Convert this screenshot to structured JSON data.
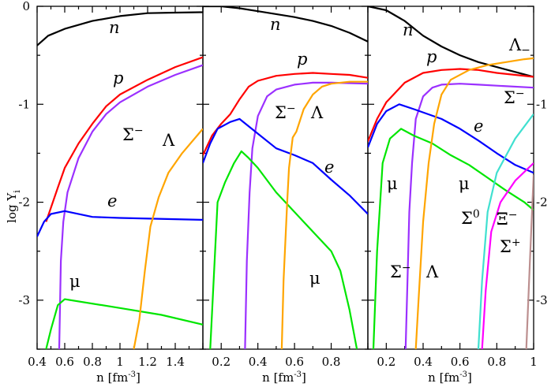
{
  "chart_data": [
    {
      "type": "line",
      "xlabel": "n [fm^-3]",
      "ylabel": "log Y_i",
      "xlim": [
        0.4,
        1.6
      ],
      "ylim": [
        -3.5,
        0
      ],
      "xticks": [
        "0.4",
        "0.6",
        "0.8",
        "1",
        "1.2",
        "1.4"
      ],
      "yticks": [
        "0",
        "-1",
        "-2",
        "-3"
      ],
      "series": [
        {
          "name": "n",
          "color": "#000000",
          "points": [
            [
              0.4,
              -0.4
            ],
            [
              0.48,
              -0.3
            ],
            [
              0.6,
              -0.23
            ],
            [
              0.8,
              -0.15
            ],
            [
              1.0,
              -0.1
            ],
            [
              1.2,
              -0.07
            ],
            [
              1.36,
              -0.065
            ],
            [
              1.6,
              -0.06
            ]
          ]
        },
        {
          "name": "p",
          "color": "#ff0000",
          "points": [
            [
              0.465,
              -2.2
            ],
            [
              0.55,
              -1.85
            ],
            [
              0.6,
              -1.65
            ],
            [
              0.7,
              -1.4
            ],
            [
              0.8,
              -1.2
            ],
            [
              0.9,
              -1.02
            ],
            [
              1.0,
              -0.9
            ],
            [
              1.2,
              -0.75
            ],
            [
              1.4,
              -0.62
            ],
            [
              1.6,
              -0.52
            ]
          ]
        },
        {
          "name": "Σ⁻",
          "color": "#9b30ff",
          "points": [
            [
              0.56,
              -3.5
            ],
            [
              0.572,
              -2.6
            ],
            [
              0.59,
              -2.2
            ],
            [
              0.62,
              -1.9
            ],
            [
              0.7,
              -1.55
            ],
            [
              0.8,
              -1.28
            ],
            [
              0.9,
              -1.1
            ],
            [
              1.0,
              -0.98
            ],
            [
              1.2,
              -0.82
            ],
            [
              1.4,
              -0.7
            ],
            [
              1.6,
              -0.6
            ]
          ]
        },
        {
          "name": "e",
          "color": "#0000ff",
          "points": [
            [
              0.4,
              -2.35
            ],
            [
              0.45,
              -2.2
            ],
            [
              0.5,
              -2.12
            ],
            [
              0.6,
              -2.09
            ],
            [
              0.8,
              -2.15
            ],
            [
              1.0,
              -2.16
            ],
            [
              1.6,
              -2.18
            ]
          ]
        },
        {
          "name": "μ",
          "color": "#00e600",
          "points": [
            [
              0.465,
              -3.5
            ],
            [
              0.5,
              -3.3
            ],
            [
              0.55,
              -3.05
            ],
            [
              0.6,
              -2.99
            ],
            [
              1.0,
              -3.08
            ],
            [
              1.3,
              -3.15
            ],
            [
              1.6,
              -3.25
            ]
          ]
        },
        {
          "name": "Λ",
          "color": "#ffa500",
          "points": [
            [
              1.1,
              -3.5
            ],
            [
              1.14,
              -3.2
            ],
            [
              1.18,
              -2.7
            ],
            [
              1.22,
              -2.25
            ],
            [
              1.28,
              -1.95
            ],
            [
              1.35,
              -1.7
            ],
            [
              1.45,
              -1.5
            ],
            [
              1.6,
              -1.25
            ]
          ]
        }
      ],
      "annotations": [
        "n",
        "p",
        "Σ⁻",
        "Λ",
        "e",
        "μ"
      ]
    },
    {
      "type": "line",
      "xlabel": "n [fm^-3]",
      "xlim": [
        0.1,
        1.0
      ],
      "ylim": [
        -3.5,
        0
      ],
      "xticks": [
        "0.2",
        "0.4",
        "0.6",
        "0.8"
      ],
      "series": [
        {
          "name": "n",
          "color": "#000000",
          "points": [
            [
              0.1,
              -0.0
            ],
            [
              0.2,
              -0.0
            ],
            [
              0.3,
              -0.02
            ],
            [
              0.4,
              -0.05
            ],
            [
              0.5,
              -0.08
            ],
            [
              0.6,
              -0.11
            ],
            [
              0.7,
              -0.15
            ],
            [
              0.8,
              -0.2
            ],
            [
              0.9,
              -0.27
            ],
            [
              1.0,
              -0.36
            ]
          ]
        },
        {
          "name": "p",
          "color": "#ff0000",
          "points": [
            [
              0.1,
              -1.52
            ],
            [
              0.15,
              -1.32
            ],
            [
              0.2,
              -1.2
            ],
            [
              0.25,
              -1.1
            ],
            [
              0.3,
              -0.95
            ],
            [
              0.35,
              -0.82
            ],
            [
              0.4,
              -0.76
            ],
            [
              0.5,
              -0.71
            ],
            [
              0.6,
              -0.69
            ],
            [
              0.7,
              -0.68
            ],
            [
              0.8,
              -0.69
            ],
            [
              0.9,
              -0.7
            ],
            [
              1.0,
              -0.73
            ]
          ]
        },
        {
          "name": "Σ⁻",
          "color": "#9b30ff",
          "points": [
            [
              0.33,
              -3.5
            ],
            [
              0.34,
              -2.6
            ],
            [
              0.355,
              -1.9
            ],
            [
              0.37,
              -1.45
            ],
            [
              0.4,
              -1.12
            ],
            [
              0.45,
              -0.92
            ],
            [
              0.5,
              -0.85
            ],
            [
              0.6,
              -0.8
            ],
            [
              0.7,
              -0.78
            ],
            [
              0.8,
              -0.78
            ],
            [
              1.0,
              -0.79
            ]
          ]
        },
        {
          "name": "e",
          "color": "#0000ff",
          "points": [
            [
              0.1,
              -1.6
            ],
            [
              0.14,
              -1.4
            ],
            [
              0.18,
              -1.25
            ],
            [
              0.25,
              -1.18
            ],
            [
              0.3,
              -1.15
            ],
            [
              0.4,
              -1.3
            ],
            [
              0.5,
              -1.45
            ],
            [
              0.6,
              -1.52
            ],
            [
              0.7,
              -1.6
            ],
            [
              0.8,
              -1.77
            ],
            [
              0.9,
              -1.93
            ],
            [
              1.0,
              -2.12
            ]
          ]
        },
        {
          "name": "μ",
          "color": "#00e600",
          "points": [
            [
              0.14,
              -3.5
            ],
            [
              0.18,
              -2.0
            ],
            [
              0.22,
              -1.8
            ],
            [
              0.27,
              -1.6
            ],
            [
              0.31,
              -1.48
            ],
            [
              0.35,
              -1.55
            ],
            [
              0.4,
              -1.65
            ],
            [
              0.5,
              -1.9
            ],
            [
              0.6,
              -2.1
            ],
            [
              0.7,
              -2.3
            ],
            [
              0.8,
              -2.5
            ],
            [
              0.85,
              -2.7
            ],
            [
              0.9,
              -3.1
            ],
            [
              0.94,
              -3.5
            ]
          ]
        },
        {
          "name": "Λ",
          "color": "#ffa500",
          "points": [
            [
              0.53,
              -3.5
            ],
            [
              0.54,
              -2.8
            ],
            [
              0.56,
              -2.0
            ],
            [
              0.57,
              -1.65
            ],
            [
              0.59,
              -1.34
            ],
            [
              0.61,
              -1.28
            ],
            [
              0.65,
              -1.05
            ],
            [
              0.7,
              -0.9
            ],
            [
              0.75,
              -0.82
            ],
            [
              0.8,
              -0.79
            ],
            [
              0.9,
              -0.77
            ],
            [
              1.0,
              -0.77
            ]
          ]
        }
      ],
      "annotations": [
        "n",
        "p",
        "Σ⁻",
        "Λ",
        "e",
        "μ"
      ]
    },
    {
      "type": "line",
      "xlabel": "n [fm^-3]",
      "xlim": [
        0.1,
        1.0
      ],
      "ylim": [
        -3.5,
        0
      ],
      "xticks": [
        "0.2",
        "0.4",
        "0.6",
        "0.8",
        "1"
      ],
      "yticks": [
        "-1",
        "-2",
        "-3"
      ],
      "series": [
        {
          "name": "n",
          "color": "#000000",
          "points": [
            [
              0.1,
              0.0
            ],
            [
              0.2,
              -0.04
            ],
            [
              0.3,
              -0.15
            ],
            [
              0.4,
              -0.3
            ],
            [
              0.5,
              -0.41
            ],
            [
              0.6,
              -0.5
            ],
            [
              0.7,
              -0.57
            ],
            [
              0.8,
              -0.62
            ],
            [
              0.9,
              -0.67
            ],
            [
              1.0,
              -0.72
            ]
          ]
        },
        {
          "name": "p",
          "color": "#ff0000",
          "points": [
            [
              0.1,
              -1.38
            ],
            [
              0.15,
              -1.15
            ],
            [
              0.2,
              -0.98
            ],
            [
              0.3,
              -0.78
            ],
            [
              0.4,
              -0.68
            ],
            [
              0.5,
              -0.65
            ],
            [
              0.6,
              -0.64
            ],
            [
              0.7,
              -0.65
            ],
            [
              0.8,
              -0.68
            ],
            [
              0.9,
              -0.7
            ],
            [
              1.0,
              -0.72
            ]
          ]
        },
        {
          "name": "Σ⁻",
          "color": "#9b30ff",
          "points": [
            [
              0.305,
              -3.5
            ],
            [
              0.315,
              -2.8
            ],
            [
              0.325,
              -2.1
            ],
            [
              0.34,
              -1.6
            ],
            [
              0.36,
              -1.15
            ],
            [
              0.4,
              -0.92
            ],
            [
              0.45,
              -0.83
            ],
            [
              0.5,
              -0.8
            ],
            [
              0.6,
              -0.79
            ],
            [
              0.7,
              -0.8
            ],
            [
              0.8,
              -0.81
            ],
            [
              1.0,
              -0.83
            ]
          ]
        },
        {
          "name": "e",
          "color": "#0000ff",
          "points": [
            [
              0.1,
              -1.44
            ],
            [
              0.15,
              -1.2
            ],
            [
              0.2,
              -1.07
            ],
            [
              0.27,
              -1.0
            ],
            [
              0.35,
              -1.05
            ],
            [
              0.5,
              -1.15
            ],
            [
              0.6,
              -1.25
            ],
            [
              0.7,
              -1.37
            ],
            [
              0.8,
              -1.5
            ],
            [
              0.9,
              -1.62
            ],
            [
              1.0,
              -1.7
            ]
          ]
        },
        {
          "name": "μ",
          "color": "#00e600",
          "points": [
            [
              0.13,
              -3.5
            ],
            [
              0.15,
              -2.5
            ],
            [
              0.18,
              -1.6
            ],
            [
              0.22,
              -1.35
            ],
            [
              0.28,
              -1.25
            ],
            [
              0.35,
              -1.32
            ],
            [
              0.45,
              -1.4
            ],
            [
              0.55,
              -1.52
            ],
            [
              0.65,
              -1.62
            ],
            [
              0.75,
              -1.75
            ],
            [
              0.85,
              -1.88
            ],
            [
              0.95,
              -2.0
            ],
            [
              1.0,
              -2.08
            ]
          ]
        },
        {
          "name": "Λ",
          "color": "#ffa500",
          "points": [
            [
              0.36,
              -3.5
            ],
            [
              0.375,
              -3.0
            ],
            [
              0.4,
              -2.2
            ],
            [
              0.43,
              -1.6
            ],
            [
              0.46,
              -1.2
            ],
            [
              0.5,
              -0.9
            ],
            [
              0.55,
              -0.75
            ],
            [
              0.65,
              -0.65
            ],
            [
              0.75,
              -0.6
            ],
            [
              0.85,
              -0.57
            ],
            [
              0.95,
              -0.54
            ],
            [
              1.0,
              -0.53
            ]
          ]
        },
        {
          "name": "Σ⁰",
          "color": "#40e0d0",
          "points": [
            [
              0.7,
              -3.5
            ],
            [
              0.72,
              -2.8
            ],
            [
              0.75,
              -2.1
            ],
            [
              0.8,
              -1.7
            ],
            [
              0.9,
              -1.35
            ],
            [
              1.0,
              -1.1
            ]
          ]
        },
        {
          "name": "Ξ⁻",
          "color": "#ff00ff",
          "points": [
            [
              0.72,
              -3.5
            ],
            [
              0.74,
              -2.9
            ],
            [
              0.77,
              -2.3
            ],
            [
              0.82,
              -2.0
            ],
            [
              0.9,
              -1.78
            ],
            [
              1.0,
              -1.6
            ]
          ]
        },
        {
          "name": "Σ⁺",
          "color": "#bc8f8f",
          "points": [
            [
              0.96,
              -3.5
            ],
            [
              0.98,
              -2.6
            ],
            [
              1.0,
              -1.72
            ]
          ]
        }
      ],
      "annotations": [
        "n",
        "p",
        "Σ⁻",
        "Λ",
        "e",
        "μ",
        "Σ⁻",
        "Λ",
        "Σ⁰",
        "Ξ⁻",
        "Σ⁺"
      ]
    }
  ],
  "axis": {
    "ylabel_main": "log Y",
    "ylabel_sub": "i",
    "xlabel_main": "n [fm",
    "xlabel_sup": "-3",
    "xlabel_end": "]"
  },
  "labels": {
    "p1": {
      "n": "n",
      "p": "p",
      "sigma": "Σ",
      "lambda": "Λ",
      "e": "e",
      "mu": "μ"
    },
    "p2": {
      "n": "n",
      "p": "p",
      "sigma": "Σ",
      "lambda": "Λ",
      "e": "e",
      "mu": "μ"
    },
    "p3": {
      "n": "n",
      "p": "p",
      "lambda_top": "Λ",
      "sigma_top": "Σ",
      "e": "e",
      "mu_left": "μ",
      "mu_right": "μ",
      "sigma_low": "Σ",
      "lambda_low": "Λ",
      "sigma0": "Σ",
      "xi": "Ξ",
      "sigmaplus": "Σ"
    },
    "minus": "−",
    "zero": "0",
    "plus": "+"
  }
}
